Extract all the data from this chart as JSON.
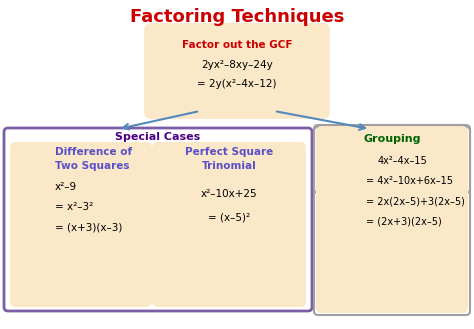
{
  "title": "Factoring Techniques",
  "title_color": "#CC0000",
  "title_fontsize": 13,
  "bg_color": "#FFFFFF",
  "box_fill_gcf": "#FAE8C8",
  "box_fill_special": "#FAE8C8",
  "box_fill_grouping": "#FAE8C8",
  "box_edge_special": "#7B5EA7",
  "box_edge_grouping": "#A0A0A0",
  "gcf_title": "Factor out the GCF",
  "gcf_title_color": "#CC0000",
  "gcf_line1": "2yx²–8xy–24y",
  "gcf_line2": "= 2y(x²–4x–12)",
  "gcf_text_color": "#000000",
  "special_title": "Special Cases",
  "special_title_color": "#4B0082",
  "diff_title": "Difference of\nTwo Squares",
  "diff_title_color": "#5B4FC8",
  "diff_line1": "x²–9",
  "diff_line2": "= x²–3²",
  "diff_line3": "= (x+3)(x–3)",
  "diff_text_color": "#000000",
  "perf_title": "Perfect Square\nTrinomial",
  "perf_title_color": "#5B4FC8",
  "perf_line1": "x²–10x+25",
  "perf_line2": "= (x–5)²",
  "perf_text_color": "#000000",
  "group_title": "Grouping",
  "group_title_color": "#006400",
  "group_line1": "4x²–4x–15",
  "group_line2": "= 4x²–10x+6x–15",
  "group_line3": "= 2x(2x–5)+3(2x–5)",
  "group_line4": "= (2x+3)(2x–5)",
  "group_text_color": "#000000",
  "arrow_color": "#5588BB"
}
